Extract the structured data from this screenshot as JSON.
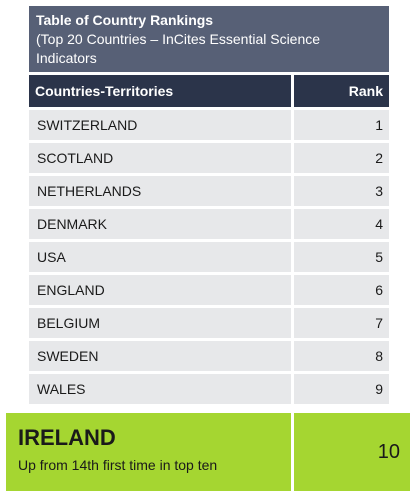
{
  "title": {
    "line1": "Table of Country Rankings",
    "line2": "(Top 20 Countries – InCites Essential Science",
    "line3": "Indicators"
  },
  "headers": {
    "country": "Countries-Territories",
    "rank": "Rank"
  },
  "rows": [
    {
      "country": "SWITZERLAND",
      "rank": "1"
    },
    {
      "country": "SCOTLAND",
      "rank": "2"
    },
    {
      "country": "NETHERLANDS",
      "rank": "3"
    },
    {
      "country": "DENMARK",
      "rank": "4"
    },
    {
      "country": "USA",
      "rank": "5"
    },
    {
      "country": "ENGLAND",
      "rank": "6"
    },
    {
      "country": "BELGIUM",
      "rank": "7"
    },
    {
      "country": "SWEDEN",
      "rank": "8"
    },
    {
      "country": "WALES",
      "rank": "9"
    }
  ],
  "highlight": {
    "country": "IRELAND",
    "note": "Up from 14th first time in top ten",
    "rank": "10"
  },
  "colors": {
    "title_bg": "#576076",
    "header_bg": "#2b344a",
    "row_bg": "#e7e8ea",
    "highlight_bg": "#a5d631"
  }
}
